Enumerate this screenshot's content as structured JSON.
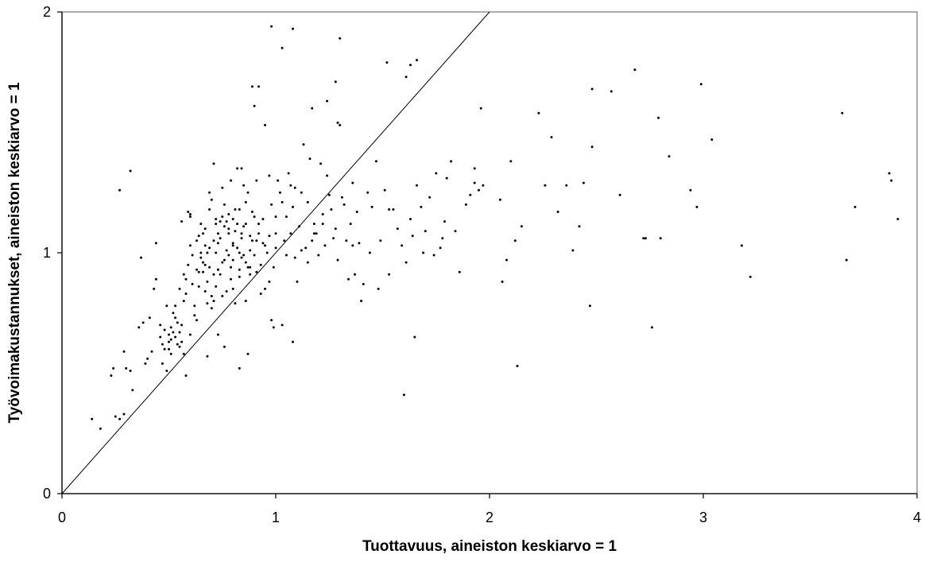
{
  "chart_data": {
    "type": "scatter",
    "title": "",
    "xlabel": "Tuottavuus, aineiston keskiarvo = 1",
    "ylabel": "Työvoimakustannukset, aineiston keskiarvo = 1",
    "xlim": [
      0,
      4
    ],
    "ylim": [
      0,
      2
    ],
    "x_ticks": [
      "0",
      "1",
      "2",
      "3",
      "4"
    ],
    "y_ticks": [
      "0",
      "1",
      "2"
    ],
    "grid": false,
    "legend": "none",
    "reference_line": {
      "from": [
        0,
        0
      ],
      "to": [
        2,
        2
      ]
    },
    "points": [
      [
        0.14,
        0.31
      ],
      [
        0.18,
        0.27
      ],
      [
        0.24,
        0.52
      ],
      [
        0.23,
        0.49
      ],
      [
        0.27,
        0.31
      ],
      [
        0.29,
        0.33
      ],
      [
        0.25,
        0.32
      ],
      [
        0.27,
        1.26
      ],
      [
        0.32,
        1.34
      ],
      [
        0.29,
        0.59
      ],
      [
        0.3,
        0.52
      ],
      [
        0.32,
        0.51
      ],
      [
        0.33,
        0.43
      ],
      [
        0.36,
        0.69
      ],
      [
        0.37,
        0.98
      ],
      [
        0.38,
        0.71
      ],
      [
        0.39,
        0.54
      ],
      [
        0.4,
        0.56
      ],
      [
        0.41,
        0.73
      ],
      [
        0.42,
        0.59
      ],
      [
        0.43,
        0.85
      ],
      [
        0.44,
        0.89
      ],
      [
        0.44,
        1.04
      ],
      [
        0.46,
        0.7
      ],
      [
        0.46,
        0.65
      ],
      [
        0.47,
        0.62
      ],
      [
        0.48,
        0.6
      ],
      [
        0.48,
        0.68
      ],
      [
        0.49,
        0.78
      ],
      [
        0.49,
        0.51
      ],
      [
        0.5,
        0.66
      ],
      [
        0.5,
        0.63
      ],
      [
        0.51,
        0.69
      ],
      [
        0.51,
        0.64
      ],
      [
        0.51,
        0.58
      ],
      [
        0.52,
        0.67
      ],
      [
        0.52,
        0.75
      ],
      [
        0.53,
        0.73
      ],
      [
        0.53,
        0.65
      ],
      [
        0.54,
        0.62
      ],
      [
        0.54,
        0.71
      ],
      [
        0.55,
        0.61
      ],
      [
        0.55,
        0.67
      ],
      [
        0.56,
        0.63
      ],
      [
        0.56,
        0.7
      ],
      [
        0.57,
        0.58
      ],
      [
        0.57,
        0.8
      ],
      [
        0.58,
        0.89
      ],
      [
        0.58,
        0.83
      ],
      [
        0.59,
        1.17
      ],
      [
        0.6,
        0.66
      ],
      [
        0.6,
        1.15
      ],
      [
        0.6,
        1.03
      ],
      [
        0.61,
        0.87
      ],
      [
        0.62,
        0.74
      ],
      [
        0.62,
        0.78
      ],
      [
        0.63,
        0.72
      ],
      [
        0.63,
        0.93
      ],
      [
        0.64,
        0.92
      ],
      [
        0.64,
        1.07
      ],
      [
        0.65,
        1.0
      ],
      [
        0.65,
        0.98
      ],
      [
        0.65,
        1.12
      ],
      [
        0.66,
        0.96
      ],
      [
        0.66,
        1.08
      ],
      [
        0.66,
        0.92
      ],
      [
        0.67,
        1.1
      ],
      [
        0.67,
        0.84
      ],
      [
        0.67,
        1.03
      ],
      [
        0.68,
        1.0
      ],
      [
        0.68,
        0.88
      ],
      [
        0.68,
        0.79
      ],
      [
        0.69,
        1.25
      ],
      [
        0.69,
        0.94
      ],
      [
        0.69,
        1.18
      ],
      [
        0.7,
        1.22
      ],
      [
        0.7,
        0.82
      ],
      [
        0.7,
        0.77
      ],
      [
        0.71,
        1.37
      ],
      [
        0.71,
        1.05
      ],
      [
        0.71,
        0.8
      ],
      [
        0.72,
        1.0
      ],
      [
        0.72,
        1.12
      ],
      [
        0.72,
        0.86
      ],
      [
        0.73,
        0.66
      ],
      [
        0.73,
        1.08
      ],
      [
        0.73,
        0.93
      ],
      [
        0.74,
        0.91
      ],
      [
        0.74,
        1.13
      ],
      [
        0.74,
        1.06
      ],
      [
        0.75,
        1.27
      ],
      [
        0.75,
        1.15
      ],
      [
        0.75,
        0.82
      ],
      [
        0.76,
        0.97
      ],
      [
        0.76,
        1.11
      ],
      [
        0.76,
        1.2
      ],
      [
        0.77,
        1.01
      ],
      [
        0.77,
        0.84
      ],
      [
        0.77,
        1.13
      ],
      [
        0.78,
        1.08
      ],
      [
        0.78,
        0.99
      ],
      [
        0.78,
        1.16
      ],
      [
        0.79,
        1.3
      ],
      [
        0.79,
        0.94
      ],
      [
        0.79,
        0.89
      ],
      [
        0.8,
        1.04
      ],
      [
        0.8,
        0.97
      ],
      [
        0.8,
        0.85
      ],
      [
        0.81,
        1.18
      ],
      [
        0.81,
        1.09
      ],
      [
        0.81,
        0.79
      ],
      [
        0.82,
        1.35
      ],
      [
        0.82,
        1.12
      ],
      [
        0.82,
        1.02
      ],
      [
        0.83,
        0.93
      ],
      [
        0.83,
        0.9
      ],
      [
        0.83,
        1.18
      ],
      [
        0.84,
        0.98
      ],
      [
        0.84,
        1.06
      ],
      [
        0.84,
        1.35
      ],
      [
        0.85,
        1.28
      ],
      [
        0.85,
        0.99
      ],
      [
        0.86,
        1.21
      ],
      [
        0.86,
        1.12
      ],
      [
        0.86,
        0.8
      ],
      [
        0.87,
        0.94
      ],
      [
        0.87,
        0.58
      ],
      [
        0.87,
        1.25
      ],
      [
        0.88,
        1.07
      ],
      [
        0.88,
        0.91
      ],
      [
        0.89,
        1.17
      ],
      [
        0.89,
        1.05
      ],
      [
        0.9,
        0.99
      ],
      [
        0.91,
        0.92
      ],
      [
        0.91,
        1.3
      ],
      [
        0.92,
        1.12
      ],
      [
        0.92,
        1.08
      ],
      [
        0.93,
        0.95
      ],
      [
        0.93,
        0.83
      ],
      [
        0.94,
        1.04
      ],
      [
        0.95,
        0.85
      ],
      [
        0.95,
        1.03
      ],
      [
        0.96,
        1.0
      ],
      [
        0.97,
        1.32
      ],
      [
        0.97,
        1.07
      ],
      [
        0.98,
        0.72
      ],
      [
        0.98,
        1.2
      ],
      [
        0.99,
        0.94
      ],
      [
        1.0,
        1.15
      ],
      [
        1.0,
        1.02
      ],
      [
        1.01,
        1.3
      ],
      [
        1.02,
        1.25
      ],
      [
        1.03,
        1.21
      ],
      [
        1.04,
        1.05
      ],
      [
        1.05,
        0.99
      ],
      [
        1.06,
        1.33
      ],
      [
        1.07,
        1.28
      ],
      [
        1.07,
        1.08
      ],
      [
        1.08,
        1.19
      ],
      [
        1.09,
        0.98
      ],
      [
        1.1,
        0.88
      ],
      [
        1.11,
        1.11
      ],
      [
        1.12,
        1.25
      ],
      [
        1.13,
        1.45
      ],
      [
        1.14,
        1.02
      ],
      [
        1.15,
        1.21
      ],
      [
        1.16,
        1.39
      ],
      [
        1.17,
        1.05
      ],
      [
        1.18,
        1.12
      ],
      [
        1.19,
        1.08
      ],
      [
        1.2,
        0.99
      ],
      [
        1.21,
        1.37
      ],
      [
        1.22,
        1.16
      ],
      [
        1.23,
        1.03
      ],
      [
        1.24,
        1.32
      ],
      [
        1.25,
        1.24
      ],
      [
        1.26,
        1.18
      ],
      [
        1.27,
        1.06
      ],
      [
        1.28,
        1.1
      ],
      [
        1.29,
        0.97
      ],
      [
        1.3,
        1.53
      ],
      [
        1.31,
        1.23
      ],
      [
        1.32,
        1.2
      ],
      [
        1.33,
        1.05
      ],
      [
        1.34,
        0.89
      ],
      [
        1.35,
        1.12
      ],
      [
        1.36,
        1.03
      ],
      [
        1.37,
        0.91
      ],
      [
        1.38,
        1.17
      ],
      [
        1.39,
        1.04
      ],
      [
        1.4,
        0.8
      ],
      [
        1.41,
        0.87
      ],
      [
        1.43,
        1.25
      ],
      [
        1.45,
        1.19
      ],
      [
        1.47,
        1.38
      ],
      [
        1.48,
        0.85
      ],
      [
        1.49,
        1.05
      ],
      [
        1.51,
        1.26
      ],
      [
        1.53,
        0.91
      ],
      [
        1.55,
        1.18
      ],
      [
        1.57,
        1.1
      ],
      [
        1.59,
        1.03
      ],
      [
        1.61,
        0.96
      ],
      [
        1.63,
        1.14
      ],
      [
        1.64,
        1.07
      ],
      [
        1.66,
        1.28
      ],
      [
        1.68,
        1.19
      ],
      [
        1.7,
        1.09
      ],
      [
        1.72,
        1.23
      ],
      [
        1.74,
        0.99
      ],
      [
        1.75,
        1.33
      ],
      [
        1.77,
        1.02
      ],
      [
        1.79,
        1.13
      ],
      [
        1.8,
        1.31
      ],
      [
        1.82,
        1.38
      ],
      [
        1.84,
        1.09
      ],
      [
        1.86,
        0.92
      ],
      [
        1.89,
        1.2
      ],
      [
        1.91,
        1.24
      ],
      [
        1.93,
        1.35
      ],
      [
        1.95,
        1.26
      ],
      [
        1.97,
        1.28
      ],
      [
        1.96,
        1.6
      ],
      [
        0.98,
        1.94
      ],
      [
        1.03,
        1.85
      ],
      [
        1.08,
        1.93
      ],
      [
        1.3,
        1.89
      ],
      [
        1.52,
        1.79
      ],
      [
        1.61,
        1.73
      ],
      [
        1.63,
        1.78
      ],
      [
        1.66,
        1.8
      ],
      [
        0.89,
        1.69
      ],
      [
        0.92,
        1.69
      ],
      [
        0.9,
        1.61
      ],
      [
        1.28,
        1.71
      ],
      [
        1.17,
        1.6
      ],
      [
        1.24,
        1.63
      ],
      [
        1.29,
        1.54
      ],
      [
        0.95,
        1.53
      ],
      [
        1.6,
        0.41
      ],
      [
        1.65,
        0.65
      ],
      [
        1.08,
        0.63
      ],
      [
        0.99,
        0.69
      ],
      [
        1.03,
        0.7
      ],
      [
        0.83,
        0.52
      ],
      [
        0.76,
        0.61
      ],
      [
        0.68,
        0.57
      ],
      [
        0.58,
        0.49
      ],
      [
        2.05,
        1.22
      ],
      [
        2.06,
        0.88
      ],
      [
        2.08,
        0.97
      ],
      [
        2.1,
        1.38
      ],
      [
        2.12,
        1.05
      ],
      [
        2.13,
        0.53
      ],
      [
        2.15,
        1.11
      ],
      [
        2.23,
        1.58
      ],
      [
        2.26,
        1.28
      ],
      [
        2.29,
        1.48
      ],
      [
        2.32,
        1.17
      ],
      [
        2.36,
        1.28
      ],
      [
        2.39,
        1.01
      ],
      [
        2.42,
        1.11
      ],
      [
        2.44,
        1.29
      ],
      [
        2.47,
        0.78
      ],
      [
        2.48,
        1.68
      ],
      [
        2.48,
        1.44
      ],
      [
        2.57,
        1.67
      ],
      [
        2.61,
        1.24
      ],
      [
        2.68,
        1.76
      ],
      [
        2.72,
        1.06
      ],
      [
        2.73,
        1.06
      ],
      [
        2.76,
        0.69
      ],
      [
        2.79,
        1.56
      ],
      [
        2.8,
        1.06
      ],
      [
        2.84,
        1.4
      ],
      [
        2.94,
        1.26
      ],
      [
        2.97,
        1.19
      ],
      [
        2.99,
        1.7
      ],
      [
        3.04,
        1.47
      ],
      [
        3.18,
        1.03
      ],
      [
        3.22,
        0.9
      ],
      [
        3.65,
        1.58
      ],
      [
        3.67,
        0.97
      ],
      [
        3.71,
        1.19
      ],
      [
        3.87,
        1.33
      ],
      [
        3.88,
        1.3
      ],
      [
        3.91,
        1.14
      ],
      [
        1.36,
        1.29
      ],
      [
        1.44,
        1.0
      ],
      [
        1.53,
        1.18
      ],
      [
        1.69,
        1.0
      ],
      [
        1.78,
        1.06
      ],
      [
        1.93,
        1.29
      ],
      [
        0.56,
        1.13
      ],
      [
        0.6,
        1.16
      ],
      [
        0.63,
        1.05
      ],
      [
        0.72,
        1.14
      ],
      [
        0.8,
        1.03
      ],
      [
        0.84,
        1.08
      ],
      [
        0.88,
        0.94
      ],
      [
        0.91,
        1.05
      ],
      [
        0.94,
        1.14
      ],
      [
        0.97,
        0.88
      ],
      [
        1.0,
        1.08
      ],
      [
        1.05,
        1.15
      ],
      [
        1.09,
        1.27
      ],
      [
        1.12,
        1.01
      ],
      [
        1.15,
        0.96
      ],
      [
        1.18,
        1.08
      ],
      [
        1.22,
        1.12
      ],
      [
        0.47,
        0.54
      ],
      [
        0.5,
        0.6
      ],
      [
        0.53,
        0.78
      ],
      [
        0.55,
        0.85
      ],
      [
        0.57,
        0.91
      ],
      [
        0.59,
        0.95
      ],
      [
        0.61,
        0.99
      ],
      [
        0.64,
        0.86
      ],
      [
        0.67,
        0.95
      ],
      [
        0.69,
        1.02
      ],
      [
        0.71,
        0.91
      ],
      [
        0.73,
        1.04
      ],
      [
        0.75,
        0.96
      ],
      [
        0.78,
        1.1
      ],
      [
        0.8,
        1.14
      ],
      [
        0.83,
        1.0
      ],
      [
        0.85,
        1.11
      ],
      [
        0.86,
        0.96
      ],
      [
        0.88,
        1.01
      ],
      [
        0.9,
        1.15
      ]
    ]
  }
}
